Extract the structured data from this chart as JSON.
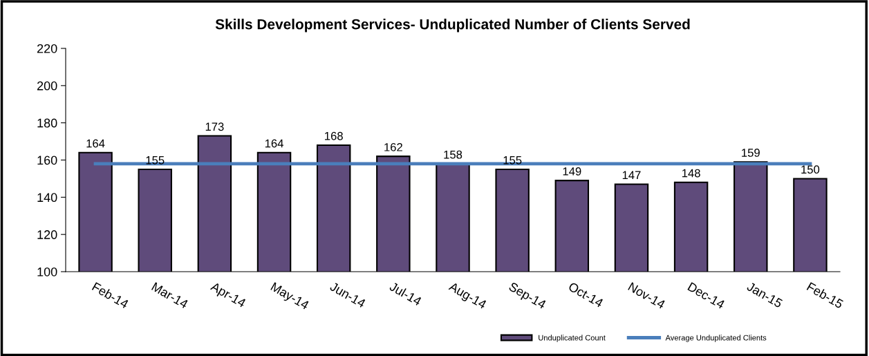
{
  "chart_data": {
    "type": "bar",
    "title": "Skills Development Services- Unduplicated Number of Clients Served",
    "categories": [
      "Feb-14",
      "Mar-14",
      "Apr-14",
      "May-14",
      "Jun-14",
      "Jul-14",
      "Aug-14",
      "Sep-14",
      "Oct-14",
      "Nov-14",
      "Dec-14",
      "Jan-15",
      "Feb-15"
    ],
    "series": [
      {
        "name": "Unduplicated Count",
        "color": "#5f4b7b",
        "values": [
          164,
          155,
          173,
          164,
          168,
          162,
          158,
          155,
          149,
          147,
          148,
          159,
          150
        ],
        "value_labels": [
          "164",
          "155",
          "173",
          "164",
          "168",
          "162",
          "158",
          "155",
          "149",
          "147",
          "148",
          "159",
          "150"
        ]
      },
      {
        "name": "Average Unduplicated Clients",
        "type": "line",
        "color": "#4a7ebb",
        "values": [
          158,
          158,
          158,
          158,
          158,
          158,
          158,
          158,
          158,
          158,
          158,
          158,
          158
        ]
      }
    ],
    "ylim": [
      100,
      220
    ],
    "yticks": [
      100,
      120,
      140,
      160,
      180,
      200,
      220
    ],
    "grid": false,
    "legend": "bottom",
    "marker": "none",
    "line_style": "solid"
  }
}
